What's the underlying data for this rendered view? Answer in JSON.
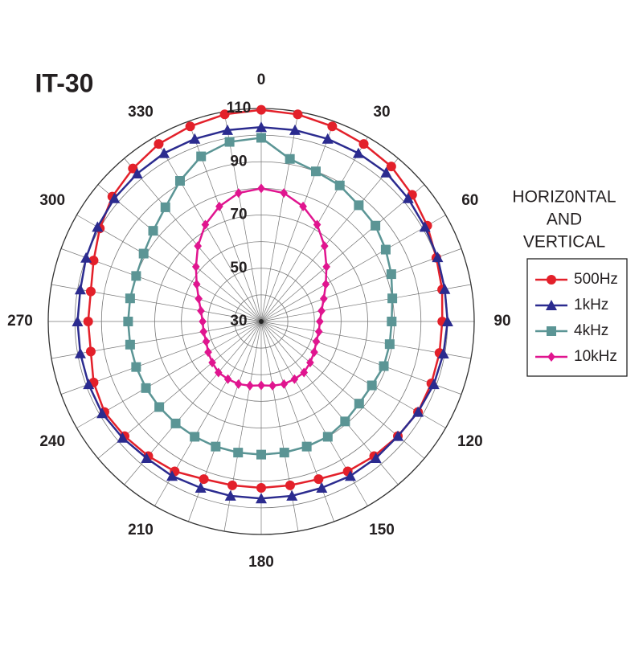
{
  "chart_data": {
    "type": "polar",
    "title": "IT-30",
    "legend_title": [
      "HORIZ0NTAL",
      "AND",
      "VERTICAL"
    ],
    "theta": [
      0,
      10,
      20,
      30,
      40,
      50,
      60,
      70,
      80,
      90,
      100,
      110,
      120,
      130,
      140,
      150,
      160,
      170,
      180,
      190,
      200,
      210,
      220,
      230,
      240,
      250,
      260,
      270,
      280,
      290,
      300,
      310,
      320,
      330,
      340,
      350
    ],
    "angle_ticks": [
      0,
      30,
      60,
      90,
      120,
      150,
      180,
      210,
      240,
      270,
      300,
      330
    ],
    "rlim": [
      30,
      110
    ],
    "rticks": [
      30,
      50,
      70,
      90,
      110
    ],
    "rminor": [
      40,
      60,
      80,
      100
    ],
    "series": [
      {
        "name": "500Hz",
        "color": "#e3202a",
        "marker": "circle",
        "values": [
          109.5,
          109,
          108,
          107,
          106,
          104,
          102,
          100,
          99,
          98,
          98,
          98,
          98,
          97,
          96,
          95,
          93,
          92.5,
          92.5,
          92.5,
          93,
          95,
          96,
          97,
          98,
          97,
          95,
          95,
          95,
          97,
          100,
          103,
          105,
          107,
          108,
          109
        ]
      },
      {
        "name": "1kHz",
        "color": "#2b2b8f",
        "marker": "triangle",
        "values": [
          103,
          103,
          103,
          103,
          103,
          102,
          101,
          100.5,
          100,
          100,
          99.5,
          99,
          98,
          97,
          97,
          97,
          96.5,
          96.5,
          96.5,
          96.5,
          96.5,
          97,
          97,
          98,
          99,
          99,
          99,
          99,
          99,
          100,
          101,
          102,
          102.5,
          103,
          103,
          103
        ]
      },
      {
        "name": "4kHz",
        "color": "#5b9595",
        "marker": "square",
        "values": [
          99,
          92,
          90,
          89,
          87,
          86,
          84,
          82,
          80,
          79,
          79,
          79,
          78,
          78,
          79,
          80,
          80,
          80,
          80,
          80,
          80,
          80,
          80,
          80,
          80,
          80,
          80,
          80,
          80,
          80,
          81,
          83,
          86,
          91,
          96,
          98.5
        ]
      },
      {
        "name": "10kHz",
        "color": "#e0158f",
        "marker": "diamond",
        "values": [
          80,
          79,
          76,
          72,
          67,
          62,
          58,
          55,
          53,
          52,
          52,
          52,
          53,
          54,
          55,
          55,
          55,
          54.5,
          54,
          54.5,
          55,
          55,
          55,
          54,
          53,
          52,
          52,
          52,
          53,
          55,
          58,
          62,
          67,
          72,
          76,
          79
        ]
      }
    ]
  }
}
